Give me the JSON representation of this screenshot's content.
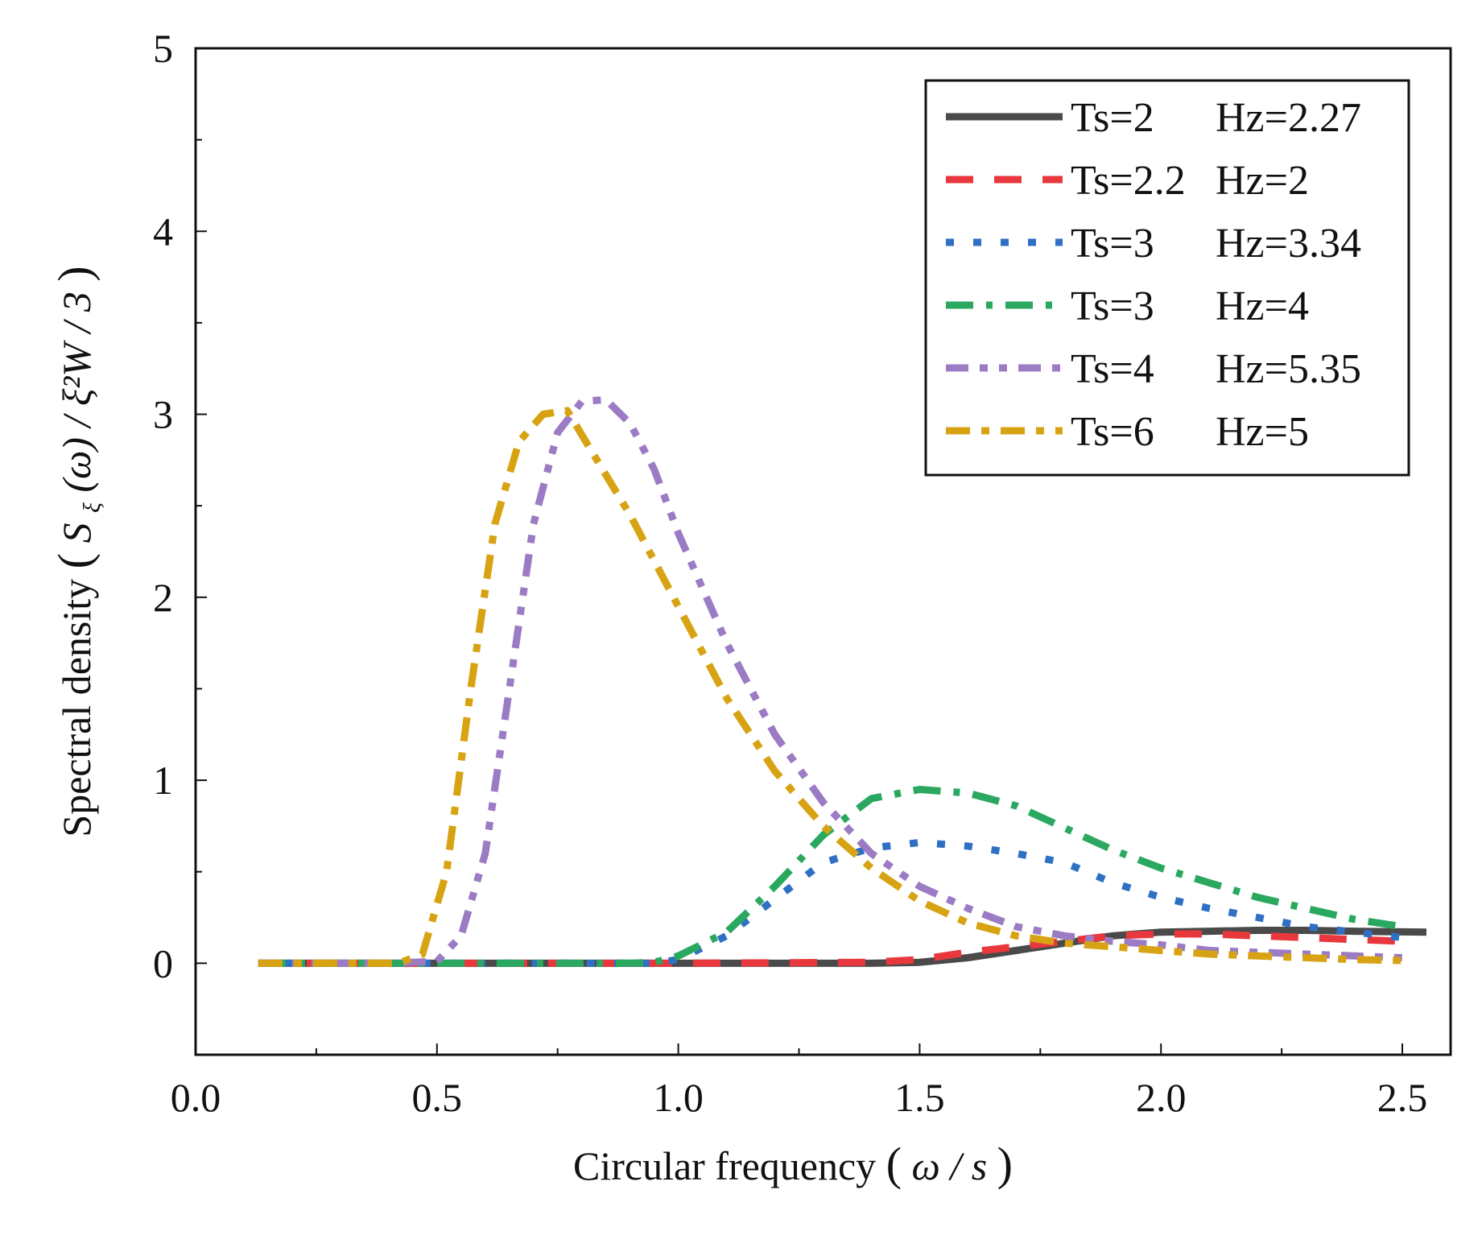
{
  "chart_data": {
    "type": "line",
    "title": "",
    "xlabel_text": "Circular frequency",
    "xlabel_math": "ω / s",
    "ylabel_text": "Spectral density",
    "ylabel_math_S": "S",
    "ylabel_math_sub": "ξ",
    "ylabel_math_arg": "(ω)",
    "ylabel_math_rest": "/ ξ²W / 3",
    "xlim": [
      0.0,
      2.6
    ],
    "ylim": [
      -0.5,
      5
    ],
    "x_ticks": [
      0.0,
      0.5,
      1.0,
      1.5,
      2.0,
      2.5
    ],
    "x_tick_labels": [
      "0.0",
      "0.5",
      "1.0",
      "1.5",
      "2.0",
      "2.5"
    ],
    "y_ticks": [
      0,
      1,
      2,
      3,
      4,
      5
    ],
    "y_tick_labels": [
      "0",
      "1",
      "2",
      "3",
      "4",
      "5"
    ],
    "legend_position": "top-right",
    "series": [
      {
        "name": "Ts=2   Hz=2.27",
        "label_ts": "Ts=2",
        "label_hz": "Hz=2.27",
        "color": "#4a4a4a",
        "style": "solid",
        "points": [
          [
            0.13,
            0
          ],
          [
            0.5,
            0
          ],
          [
            1.0,
            0
          ],
          [
            1.4,
            0
          ],
          [
            1.5,
            0.005
          ],
          [
            1.6,
            0.03
          ],
          [
            1.7,
            0.07
          ],
          [
            1.8,
            0.11
          ],
          [
            1.9,
            0.15
          ],
          [
            2.0,
            0.17
          ],
          [
            2.1,
            0.175
          ],
          [
            2.2,
            0.18
          ],
          [
            2.3,
            0.18
          ],
          [
            2.4,
            0.175
          ],
          [
            2.55,
            0.17
          ]
        ]
      },
      {
        "name": "Ts=2.2 Hz=2",
        "label_ts": "Ts=2.2",
        "label_hz": "Hz=2",
        "color": "#e8383d",
        "style": "dash",
        "points": [
          [
            0.13,
            0
          ],
          [
            0.5,
            0
          ],
          [
            1.0,
            0
          ],
          [
            1.4,
            0.005
          ],
          [
            1.5,
            0.02
          ],
          [
            1.6,
            0.06
          ],
          [
            1.7,
            0.09
          ],
          [
            1.8,
            0.12
          ],
          [
            1.9,
            0.15
          ],
          [
            2.0,
            0.16
          ],
          [
            2.1,
            0.16
          ],
          [
            2.2,
            0.15
          ],
          [
            2.3,
            0.14
          ],
          [
            2.4,
            0.13
          ],
          [
            2.5,
            0.12
          ]
        ]
      },
      {
        "name": "Ts=3   Hz=3.34",
        "label_ts": "Ts=3",
        "label_hz": "Hz=3.34",
        "color": "#2f6fc4",
        "style": "dot",
        "points": [
          [
            0.13,
            0
          ],
          [
            0.5,
            0
          ],
          [
            0.95,
            0
          ],
          [
            1.0,
            0.02
          ],
          [
            1.1,
            0.15
          ],
          [
            1.2,
            0.35
          ],
          [
            1.3,
            0.55
          ],
          [
            1.4,
            0.63
          ],
          [
            1.5,
            0.66
          ],
          [
            1.6,
            0.64
          ],
          [
            1.7,
            0.6
          ],
          [
            1.8,
            0.55
          ],
          [
            1.9,
            0.44
          ],
          [
            2.0,
            0.36
          ],
          [
            2.1,
            0.3
          ],
          [
            2.2,
            0.25
          ],
          [
            2.3,
            0.2
          ],
          [
            2.4,
            0.17
          ],
          [
            2.5,
            0.14
          ]
        ]
      },
      {
        "name": "Ts=3   Hz=4",
        "label_ts": "Ts=3",
        "label_hz": "Hz=4",
        "color": "#2aa860",
        "style": "dash-dot-long",
        "points": [
          [
            0.13,
            0
          ],
          [
            0.5,
            0
          ],
          [
            0.9,
            0
          ],
          [
            0.95,
            0.005
          ],
          [
            1.0,
            0.04
          ],
          [
            1.1,
            0.17
          ],
          [
            1.2,
            0.42
          ],
          [
            1.3,
            0.7
          ],
          [
            1.4,
            0.9
          ],
          [
            1.5,
            0.95
          ],
          [
            1.6,
            0.93
          ],
          [
            1.7,
            0.86
          ],
          [
            1.8,
            0.74
          ],
          [
            1.9,
            0.62
          ],
          [
            2.0,
            0.52
          ],
          [
            2.1,
            0.44
          ],
          [
            2.2,
            0.36
          ],
          [
            2.3,
            0.3
          ],
          [
            2.4,
            0.24
          ],
          [
            2.5,
            0.2
          ]
        ]
      },
      {
        "name": "Ts=4   Hz=5.35",
        "label_ts": "Ts=4",
        "label_hz": "Hz=5.35",
        "color": "#9b7bc3",
        "style": "dash-dot-dot",
        "points": [
          [
            0.13,
            0
          ],
          [
            0.4,
            0
          ],
          [
            0.5,
            0.01
          ],
          [
            0.55,
            0.15
          ],
          [
            0.6,
            0.6
          ],
          [
            0.65,
            1.5
          ],
          [
            0.7,
            2.4
          ],
          [
            0.75,
            2.9
          ],
          [
            0.8,
            3.07
          ],
          [
            0.85,
            3.08
          ],
          [
            0.9,
            2.95
          ],
          [
            0.95,
            2.7
          ],
          [
            1.0,
            2.35
          ],
          [
            1.1,
            1.75
          ],
          [
            1.2,
            1.25
          ],
          [
            1.3,
            0.88
          ],
          [
            1.4,
            0.6
          ],
          [
            1.5,
            0.42
          ],
          [
            1.6,
            0.3
          ],
          [
            1.7,
            0.2
          ],
          [
            1.8,
            0.15
          ],
          [
            1.9,
            0.12
          ],
          [
            2.0,
            0.1
          ],
          [
            2.1,
            0.07
          ],
          [
            2.2,
            0.06
          ],
          [
            2.3,
            0.05
          ],
          [
            2.4,
            0.04
          ],
          [
            2.5,
            0.03
          ]
        ]
      },
      {
        "name": "Ts=6   Hz=5",
        "label_ts": "Ts=6",
        "label_hz": "Hz=5",
        "color": "#d7a313",
        "style": "dash-dot",
        "points": [
          [
            0.13,
            0
          ],
          [
            0.42,
            0
          ],
          [
            0.47,
            0.05
          ],
          [
            0.52,
            0.5
          ],
          [
            0.57,
            1.5
          ],
          [
            0.62,
            2.4
          ],
          [
            0.67,
            2.85
          ],
          [
            0.72,
            3.0
          ],
          [
            0.77,
            3.02
          ],
          [
            0.82,
            2.8
          ],
          [
            0.9,
            2.45
          ],
          [
            1.0,
            1.95
          ],
          [
            1.1,
            1.45
          ],
          [
            1.2,
            1.05
          ],
          [
            1.3,
            0.75
          ],
          [
            1.4,
            0.52
          ],
          [
            1.5,
            0.34
          ],
          [
            1.6,
            0.22
          ],
          [
            1.7,
            0.15
          ],
          [
            1.8,
            0.11
          ],
          [
            1.9,
            0.09
          ],
          [
            2.0,
            0.07
          ],
          [
            2.1,
            0.05
          ],
          [
            2.2,
            0.04
          ],
          [
            2.3,
            0.03
          ],
          [
            2.4,
            0.02
          ],
          [
            2.5,
            0.015
          ]
        ]
      }
    ]
  }
}
